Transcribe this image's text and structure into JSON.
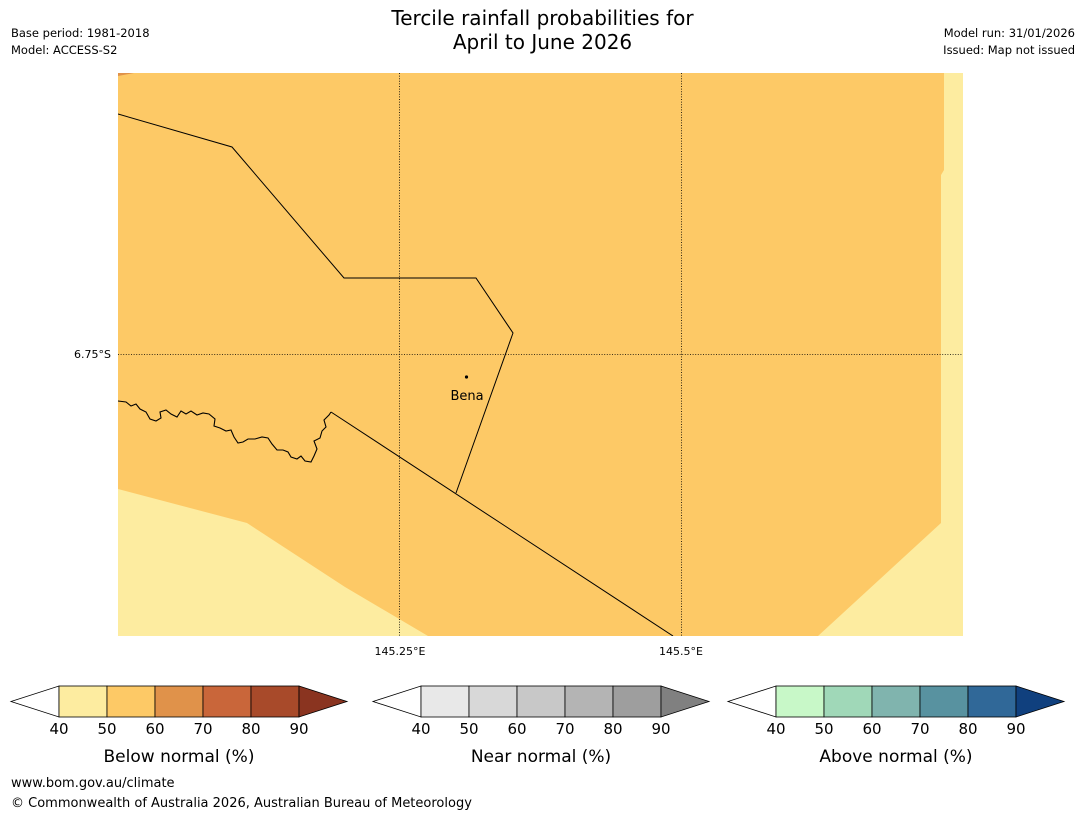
{
  "header": {
    "title_line1": "Tercile rainfall probabilities for",
    "title_line2": "April to June 2026",
    "base_period": "Base period: 1981-2018",
    "model": "Model: ACCESS-S2",
    "model_run": "Model run: 31/01/2026",
    "issued": "Issued: Map not issued"
  },
  "map": {
    "lat_label": "6.75°S",
    "lon_labels": [
      "145.25°E",
      "145.5°E"
    ],
    "place_label": "Bena",
    "colors": {
      "light": "#fdeca0",
      "mid": "#fdc966",
      "dark_corner": "#e0924a"
    }
  },
  "colorbars": [
    {
      "name": "below",
      "title": "Below normal (%)",
      "ticks": [
        "40",
        "50",
        "60",
        "70",
        "80",
        "90"
      ],
      "colors": [
        "#ffffff",
        "#fdeca0",
        "#fdc966",
        "#e0924a",
        "#c9663a",
        "#a84a2a",
        "#8a3420"
      ]
    },
    {
      "name": "near",
      "title": "Near normal (%)",
      "ticks": [
        "40",
        "50",
        "60",
        "70",
        "80",
        "90"
      ],
      "colors": [
        "#ffffff",
        "#e8e8e8",
        "#d8d8d8",
        "#c8c8c8",
        "#b4b4b4",
        "#9e9e9e",
        "#808080"
      ]
    },
    {
      "name": "above",
      "title": "Above normal (%)",
      "ticks": [
        "40",
        "50",
        "60",
        "70",
        "80",
        "90"
      ],
      "colors": [
        "#ffffff",
        "#c8f8c8",
        "#a0d8b8",
        "#80b4ae",
        "#5892a0",
        "#306898",
        "#10407e"
      ]
    }
  ],
  "footer": {
    "url": "www.bom.gov.au/climate",
    "copyright": "© Commonwealth of Australia 2026, Australian Bureau of Meteorology"
  }
}
